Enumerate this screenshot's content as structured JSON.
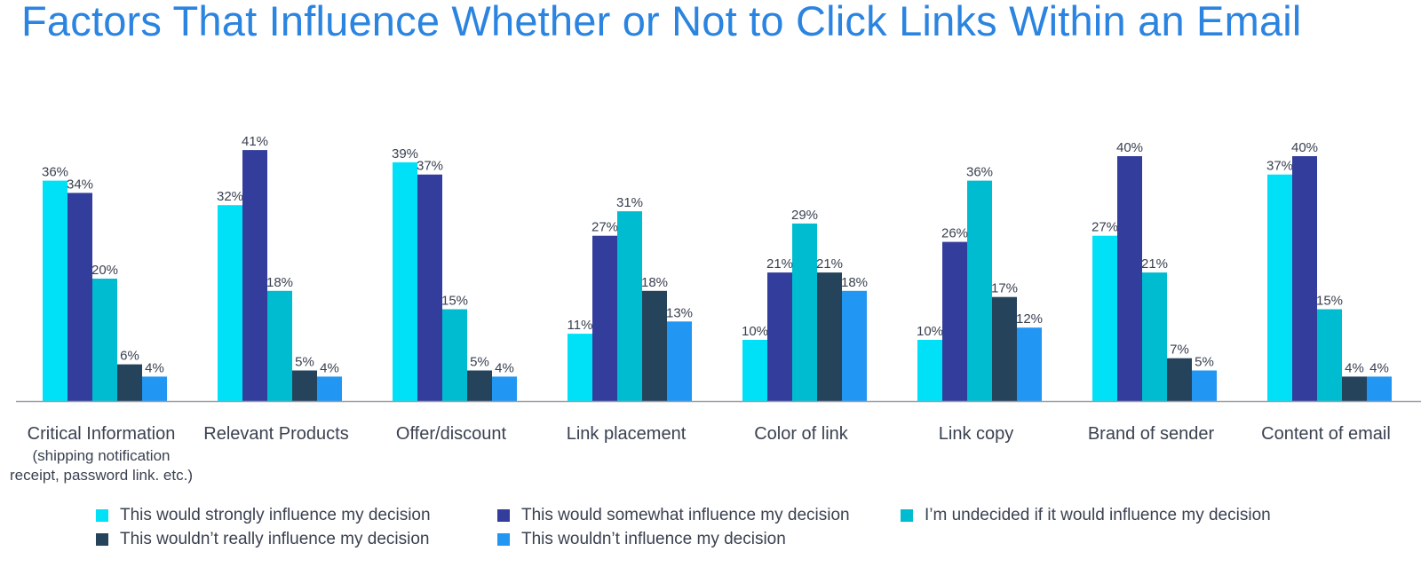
{
  "colors": {
    "title": "#2a84e0",
    "text": "#3a4150",
    "axis": "#9aa0a8",
    "series": [
      "#00e1f7",
      "#333d9c",
      "#00bcd0",
      "#26435c",
      "#2196f3"
    ]
  },
  "chart_data": {
    "type": "bar",
    "title": "Factors That Influence Whether or Not to Click Links Within an Email",
    "xlabel": "",
    "ylabel": "",
    "ylim": [
      0,
      45
    ],
    "grid": false,
    "legend_position": "bottom",
    "value_suffix": "%",
    "categories": [
      {
        "label": "Critical Information",
        "sublines": [
          "(shipping notification",
          "receipt, password link. etc.)"
        ]
      },
      {
        "label": "Relevant Products",
        "sublines": []
      },
      {
        "label": "Offer/discount",
        "sublines": []
      },
      {
        "label": "Link placement",
        "sublines": []
      },
      {
        "label": "Color of link",
        "sublines": []
      },
      {
        "label": "Link copy",
        "sublines": []
      },
      {
        "label": "Brand of sender",
        "sublines": []
      },
      {
        "label": "Content of email",
        "sublines": []
      }
    ],
    "series": [
      {
        "name": "This would strongly influence my decision",
        "values": [
          36,
          32,
          39,
          11,
          10,
          10,
          27,
          37
        ]
      },
      {
        "name": "This would somewhat influence my decision",
        "values": [
          34,
          41,
          37,
          27,
          21,
          26,
          40,
          40
        ]
      },
      {
        "name": "I’m undecided if it would influence my decision",
        "values": [
          20,
          18,
          15,
          31,
          29,
          36,
          21,
          15
        ]
      },
      {
        "name": "This wouldn’t really influence my decision",
        "values": [
          6,
          5,
          5,
          18,
          21,
          17,
          7,
          4
        ]
      },
      {
        "name": "This wouldn’t influence my decision",
        "values": [
          4,
          4,
          4,
          13,
          18,
          12,
          5,
          4
        ]
      }
    ]
  }
}
